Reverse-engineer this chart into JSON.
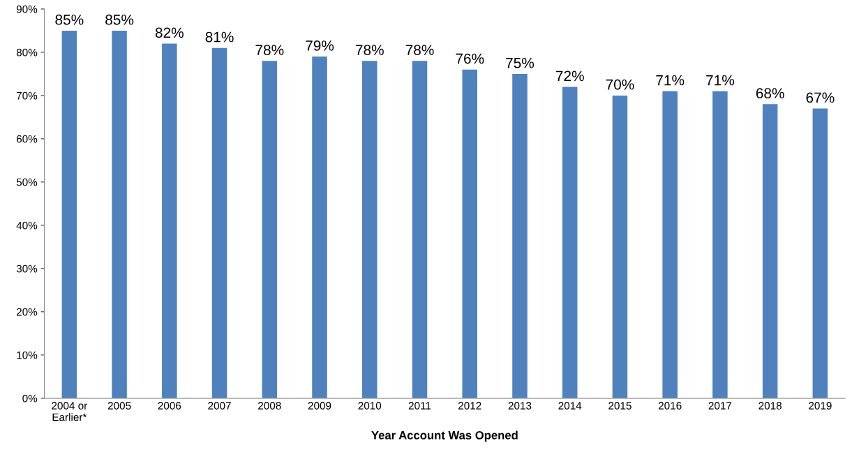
{
  "chart_data": {
    "type": "bar",
    "xlabel": "Year Account Was Opened",
    "categories": [
      "2004 or\nEarlier*",
      "2005",
      "2006",
      "2007",
      "2008",
      "2009",
      "2010",
      "2011",
      "2012",
      "2013",
      "2014",
      "2015",
      "2016",
      "2017",
      "2018",
      "2019"
    ],
    "values": [
      85,
      85,
      82,
      81,
      78,
      79,
      78,
      78,
      76,
      75,
      72,
      70,
      71,
      71,
      68,
      67
    ],
    "value_labels": [
      "85%",
      "85%",
      "82%",
      "81%",
      "78%",
      "79%",
      "78%",
      "78%",
      "76%",
      "75%",
      "72%",
      "70%",
      "71%",
      "71%",
      "68%",
      "67%"
    ],
    "color": "#4f81bd",
    "ylim": [
      0,
      90
    ],
    "yticks": [
      {
        "value": 0,
        "label": "0%"
      },
      {
        "value": 10,
        "label": "10%"
      },
      {
        "value": 20,
        "label": "20%"
      },
      {
        "value": 30,
        "label": "30%"
      },
      {
        "value": 40,
        "label": "40%"
      },
      {
        "value": 50,
        "label": "50%"
      },
      {
        "value": 60,
        "label": "60%"
      },
      {
        "value": 70,
        "label": "70%"
      },
      {
        "value": 80,
        "label": "80%"
      },
      {
        "value": 90,
        "label": "90%"
      }
    ],
    "grid": false,
    "legend": false
  }
}
